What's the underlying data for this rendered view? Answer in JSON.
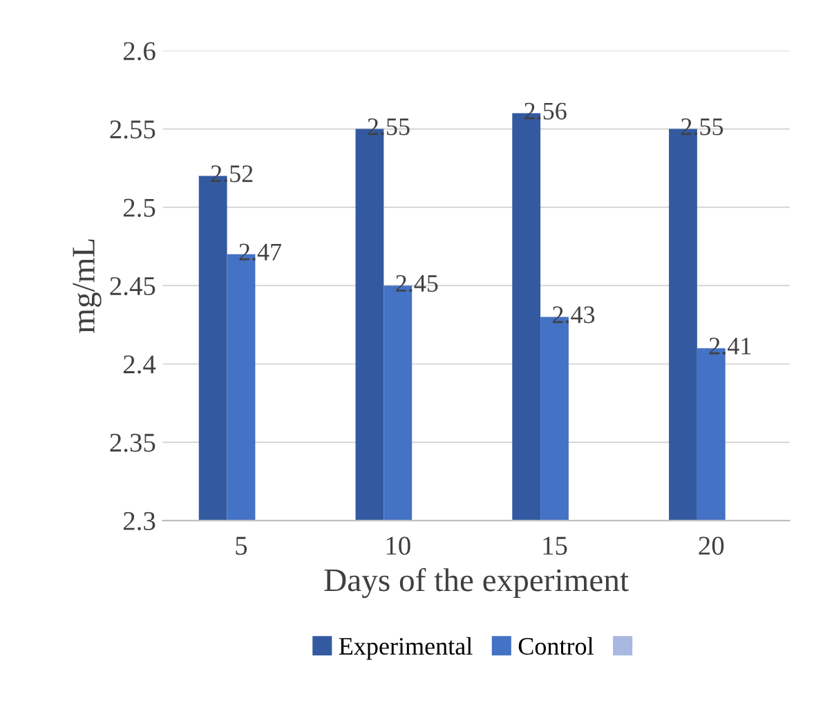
{
  "chart_data": {
    "type": "bar",
    "xlabel": "Days of the experiment",
    "ylabel": "mg/mL",
    "categories": [
      "5",
      "10",
      "15",
      "20"
    ],
    "series": [
      {
        "name": "Experimental",
        "color": "#335aa1",
        "values": [
          2.52,
          2.55,
          2.56,
          2.55
        ]
      },
      {
        "name": "Control",
        "color": "#4472c4",
        "values": [
          2.47,
          2.45,
          2.43,
          2.41
        ]
      },
      {
        "color": "#a9b8e0",
        "values": [
          null,
          null,
          null,
          null
        ]
      }
    ],
    "ylim": [
      2.3,
      2.6
    ],
    "yticks": [
      2.3,
      2.35,
      2.4,
      2.45,
      2.5,
      2.55,
      2.6
    ],
    "grid": "y",
    "legend": "bottom",
    "data_labels": true
  }
}
